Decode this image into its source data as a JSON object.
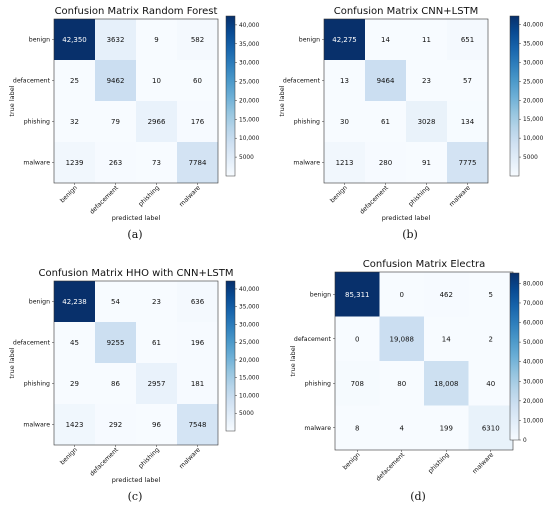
{
  "chart_data": [
    {
      "type": "heatmap",
      "title": "Confusion Matrix Random Forest",
      "xlabel": "predicted label",
      "ylabel": "true label",
      "categories": [
        "benign",
        "defacement",
        "phishing",
        "malware"
      ],
      "values": [
        [
          42350,
          3632,
          9,
          582
        ],
        [
          25,
          9462,
          10,
          60
        ],
        [
          32,
          79,
          2966,
          176
        ],
        [
          1239,
          263,
          73,
          7784
        ]
      ],
      "cell_labels": [
        [
          "42,350",
          "3632",
          "9",
          "582"
        ],
        [
          "25",
          "9462",
          "10",
          "60"
        ],
        [
          "32",
          "79",
          "2966",
          "176"
        ],
        [
          "1239",
          "263",
          "73",
          "7784"
        ]
      ],
      "colorbar_ticks": [
        "40,000",
        "35,000",
        "30,000",
        "25,000",
        "20,000",
        "15,000",
        "10,000",
        "5000"
      ],
      "colorbar_values": [
        40000,
        35000,
        30000,
        25000,
        20000,
        15000,
        10000,
        5000
      ],
      "range": [
        0,
        42350
      ],
      "caption": "(a)"
    },
    {
      "type": "heatmap",
      "title": "Confusion Matrix CNN+LSTM",
      "xlabel": "predicted label",
      "ylabel": "true label",
      "categories": [
        "benign",
        "defacement",
        "phishing",
        "malware"
      ],
      "values": [
        [
          42275,
          14,
          11,
          651
        ],
        [
          13,
          9464,
          23,
          57
        ],
        [
          30,
          61,
          3028,
          134
        ],
        [
          1213,
          280,
          91,
          7775
        ]
      ],
      "cell_labels": [
        [
          "42,275",
          "14",
          "11",
          "651"
        ],
        [
          "13",
          "9464",
          "23",
          "57"
        ],
        [
          "30",
          "61",
          "3028",
          "134"
        ],
        [
          "1213",
          "280",
          "91",
          "7775"
        ]
      ],
      "colorbar_ticks": [
        "40,000",
        "35,000",
        "30,000",
        "25,000",
        "20,000",
        "15,000",
        "10,000",
        "5000"
      ],
      "colorbar_values": [
        40000,
        35000,
        30000,
        25000,
        20000,
        15000,
        10000,
        5000
      ],
      "range": [
        0,
        42275
      ],
      "caption": "(b)"
    },
    {
      "type": "heatmap",
      "title": "Confusion Matrix HHO with CNN+LSTM",
      "xlabel": "predicted label",
      "ylabel": "true label",
      "categories": [
        "benign",
        "defacement",
        "phishing",
        "malware"
      ],
      "values": [
        [
          42238,
          54,
          23,
          636
        ],
        [
          45,
          9255,
          61,
          196
        ],
        [
          29,
          86,
          2957,
          181
        ],
        [
          1423,
          292,
          96,
          7548
        ]
      ],
      "cell_labels": [
        [
          "42,238",
          "54",
          "23",
          "636"
        ],
        [
          "45",
          "9255",
          "61",
          "196"
        ],
        [
          "29",
          "86",
          "2957",
          "181"
        ],
        [
          "1423",
          "292",
          "96",
          "7548"
        ]
      ],
      "colorbar_ticks": [
        "40,000",
        "35,000",
        "30,000",
        "25,000",
        "20,000",
        "15,000",
        "10,000",
        "5000"
      ],
      "colorbar_values": [
        40000,
        35000,
        30000,
        25000,
        20000,
        15000,
        10000,
        5000
      ],
      "range": [
        0,
        42238
      ],
      "caption": "(c)"
    },
    {
      "type": "heatmap",
      "title": "Confusion Matrix Electra",
      "xlabel": "",
      "ylabel": "true label",
      "categories": [
        "benign",
        "defacement",
        "phishing",
        "malware"
      ],
      "values": [
        [
          85311,
          0,
          462,
          5
        ],
        [
          0,
          19088,
          14,
          2
        ],
        [
          708,
          80,
          18008,
          40
        ],
        [
          8,
          4,
          199,
          6310
        ]
      ],
      "cell_labels": [
        [
          "85,311",
          "0",
          "462",
          "5"
        ],
        [
          "0",
          "19,088",
          "14",
          "2"
        ],
        [
          "708",
          "80",
          "18,008",
          "40"
        ],
        [
          "8",
          "4",
          "199",
          "6310"
        ]
      ],
      "colorbar_ticks": [
        "80,000",
        "70,000",
        "60,000",
        "50,000",
        "40,000",
        "30,000",
        "20,000",
        "10,000",
        "0"
      ],
      "colorbar_values": [
        80000,
        70000,
        60000,
        50000,
        40000,
        30000,
        20000,
        10000,
        0
      ],
      "range": [
        0,
        85311
      ],
      "caption": "(d)"
    }
  ]
}
